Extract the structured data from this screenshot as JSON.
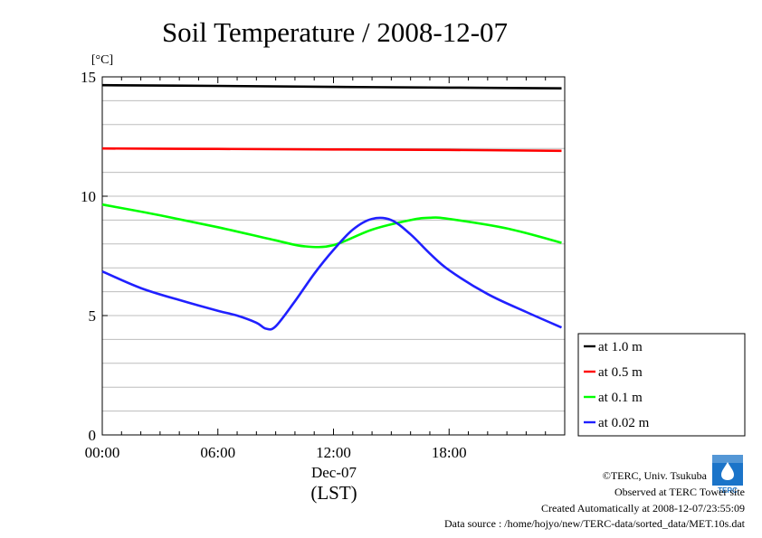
{
  "chart_data": {
    "type": "line",
    "title": "Soil Temperature / 2008-12-07",
    "ylabel": "[°C]",
    "xlabel": "(LST)",
    "date_label": "Dec-07",
    "ylim": [
      0,
      15
    ],
    "xlim": [
      "00:00",
      "24:00"
    ],
    "x_ticks": [
      "00:00",
      "06:00",
      "12:00",
      "18:00"
    ],
    "y_ticks": [
      0,
      5,
      10,
      15
    ],
    "grid": true,
    "legend_position": "right",
    "series": [
      {
        "name": "at 1.0 m",
        "color": "#000000",
        "x": [
          "00:00",
          "06:00",
          "12:00",
          "18:00",
          "23:50"
        ],
        "y": [
          14.65,
          14.62,
          14.58,
          14.55,
          14.52
        ]
      },
      {
        "name": "at 0.5 m",
        "color": "#ff0000",
        "x": [
          "00:00",
          "06:00",
          "12:00",
          "18:00",
          "23:50"
        ],
        "y": [
          12.0,
          11.98,
          11.96,
          11.94,
          11.9
        ]
      },
      {
        "name": "at 0.1 m",
        "color": "#00ff00",
        "x": [
          "00:00",
          "03:00",
          "06:00",
          "09:00",
          "10:30",
          "12:00",
          "14:00",
          "16:00",
          "17:00",
          "18:00",
          "21:00",
          "23:50"
        ],
        "y": [
          9.65,
          9.2,
          8.7,
          8.15,
          7.9,
          7.95,
          8.6,
          9.0,
          9.1,
          9.05,
          8.65,
          8.05
        ]
      },
      {
        "name": "at 0.02 m",
        "color": "#2020ff",
        "x": [
          "00:00",
          "02:00",
          "04:00",
          "06:00",
          "07:00",
          "08:00",
          "08:30",
          "09:00",
          "10:00",
          "11:00",
          "12:00",
          "13:00",
          "14:00",
          "15:00",
          "16:00",
          "17:00",
          "18:00",
          "20:00",
          "22:00",
          "23:50"
        ],
        "y": [
          6.85,
          6.15,
          5.65,
          5.2,
          5.0,
          4.7,
          4.45,
          4.55,
          5.6,
          6.75,
          7.75,
          8.6,
          9.05,
          9.0,
          8.4,
          7.6,
          6.9,
          5.9,
          5.15,
          4.5
        ]
      }
    ]
  },
  "credits": {
    "copyright": "©TERC, Univ. Tsukuba",
    "observed": "Observed at TERC Tower site",
    "created": "Created Automatically at 2008-12-07/23:55:09",
    "source": "Data source : /home/hojyo/new/TERC-data/sorted_data/MET.10s.dat",
    "logo_text": "TERC"
  }
}
